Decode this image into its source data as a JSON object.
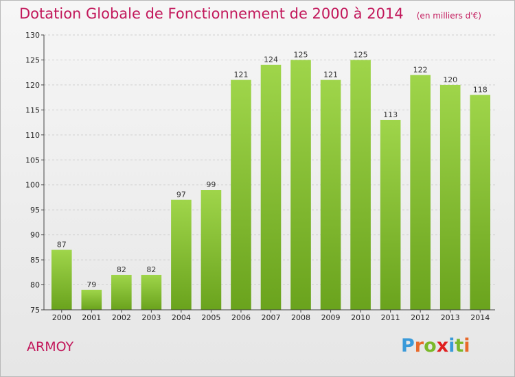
{
  "header": {
    "title": "Dotation Globale de Fonctionnement de 2000 à 2014",
    "subtitle": "(en milliers d'€)"
  },
  "place": "ARMOY",
  "logo": {
    "letters": [
      "P",
      "r",
      "o",
      "x",
      "i",
      "t",
      "i"
    ],
    "letter_colors": [
      "#3a9ad9",
      "#e8692a",
      "#7ab829",
      "#e02020",
      "#3a9ad9",
      "#7ab829",
      "#e8692a"
    ]
  },
  "chart_data": {
    "type": "bar",
    "categories": [
      "2000",
      "2001",
      "2002",
      "2003",
      "2004",
      "2005",
      "2006",
      "2007",
      "2008",
      "2009",
      "2010",
      "2011",
      "2012",
      "2013",
      "2014"
    ],
    "values": [
      87,
      79,
      82,
      82,
      97,
      99,
      121,
      124,
      125,
      121,
      125,
      113,
      122,
      120,
      118
    ],
    "ylim": [
      75,
      130
    ],
    "yticks": [
      75,
      80,
      85,
      90,
      95,
      100,
      105,
      110,
      115,
      120,
      125,
      130
    ],
    "grid": true,
    "bar_color_light": "#9fd54a",
    "bar_color_dark": "#6aa31d",
    "title_color": "#c2185b"
  }
}
